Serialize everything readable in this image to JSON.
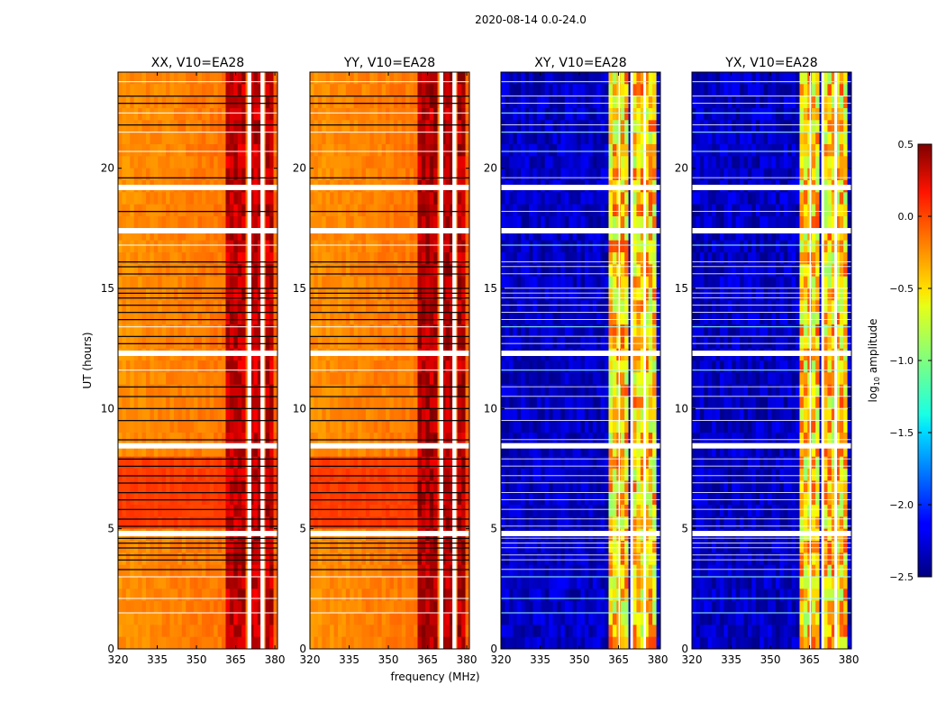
{
  "figure_title": "2020-08-14 0.0-24.0",
  "colors": {
    "frame": "#000000",
    "flag_white": "#ffffff",
    "flag_black": "#000000"
  },
  "chart_data": [
    {
      "type": "heatmap",
      "title": "XX, V10=EA28",
      "xlabel": "",
      "ylabel": "UT (hours)",
      "xlim": [
        320,
        381
      ],
      "ylim": [
        0,
        24
      ],
      "xticks": [
        320,
        335,
        350,
        365,
        380
      ],
      "yticks": [
        0,
        5,
        10,
        15,
        20
      ],
      "x_tick_labels": [
        "320",
        "335",
        "350",
        "365",
        "380"
      ],
      "y_tick_labels": [
        "0",
        "5",
        "10",
        "15",
        "20"
      ],
      "background_log10_amplitude": -0.3,
      "strong_rfi_band_mhz": [
        [
          360.5,
          369.5
        ],
        [
          371,
          374.5
        ],
        [
          376,
          380
        ]
      ],
      "band_log10_amplitude": 0.3,
      "elevated_period_hours": [
        4.8,
        7.8
      ],
      "elevated_log10_amplitude": -0.05
    },
    {
      "type": "heatmap",
      "title": "YY, V10=EA28",
      "xlabel": "frequency (MHz)",
      "ylabel": "",
      "xlim": [
        320,
        381
      ],
      "ylim": [
        0,
        24
      ],
      "xticks": [
        320,
        335,
        350,
        365,
        380
      ],
      "yticks": [
        0,
        5,
        10,
        15,
        20
      ],
      "x_tick_labels": [
        "320",
        "335",
        "350",
        "365",
        "380"
      ],
      "y_tick_labels": [
        "0",
        "5",
        "10",
        "15",
        "20"
      ],
      "background_log10_amplitude": -0.3,
      "strong_rfi_band_mhz": [
        [
          360.5,
          369.5
        ],
        [
          371,
          374.5
        ],
        [
          376,
          380
        ]
      ],
      "band_log10_amplitude": 0.35,
      "elevated_period_hours": [
        4.8,
        7.8
      ],
      "elevated_log10_amplitude": -0.05
    },
    {
      "type": "heatmap",
      "title": "XY, V10=EA28",
      "xlabel": "",
      "ylabel": "",
      "xlim": [
        320,
        381
      ],
      "ylim": [
        0,
        24
      ],
      "xticks": [
        320,
        335,
        350,
        365,
        380
      ],
      "yticks": [
        0,
        5,
        10,
        15,
        20
      ],
      "x_tick_labels": [
        "320",
        "335",
        "350",
        "365",
        "380"
      ],
      "y_tick_labels": [
        "0",
        "5",
        "10",
        "15",
        "20"
      ],
      "background_log10_amplitude": -2.3,
      "strong_rfi_band_mhz": [
        [
          360.5,
          365
        ],
        [
          365.5,
          369.5
        ],
        [
          370.5,
          374.5
        ],
        [
          375.5,
          379.5
        ]
      ],
      "band_log10_amplitude": -0.5
    },
    {
      "type": "heatmap",
      "title": "YX, V10=EA28",
      "xlabel": "",
      "ylabel": "",
      "xlim": [
        320,
        381
      ],
      "ylim": [
        0,
        24
      ],
      "xticks": [
        320,
        335,
        350,
        365,
        380
      ],
      "yticks": [
        0,
        5,
        10,
        15,
        20
      ],
      "x_tick_labels": [
        "320",
        "335",
        "350",
        "365",
        "380"
      ],
      "y_tick_labels": [
        "0",
        "5",
        "10",
        "15",
        "20"
      ],
      "background_log10_amplitude": -2.3,
      "strong_rfi_band_mhz": [
        [
          360.5,
          365
        ],
        [
          365.5,
          369.5
        ],
        [
          370.5,
          374.5
        ],
        [
          375.5,
          379.5
        ]
      ],
      "band_log10_amplitude": -0.5
    }
  ],
  "flagged_gaps_hours": [
    19.2,
    17.4,
    12.3,
    8.45,
    4.8
  ],
  "flagged_black_lines_hours": [
    23.0,
    22.7,
    21.8,
    19.6,
    18.2,
    16.1,
    15.9,
    15.6,
    15.0,
    14.8,
    14.6,
    14.3,
    14.0,
    13.7,
    13.0,
    12.7,
    10.9,
    10.5,
    10.0,
    9.5,
    8.7,
    7.9,
    7.6,
    7.2,
    6.9,
    6.5,
    6.2,
    5.8,
    5.4,
    5.1,
    4.6,
    4.4,
    4.2,
    3.9,
    3.7,
    3.3
  ],
  "flagged_white_lines_hours": [
    23.6,
    22.3,
    21.5,
    20.7,
    16.8,
    13.4,
    11.6,
    3.0,
    2.1,
    1.5
  ],
  "colorbar": {
    "label": "log10 amplitude",
    "label_base": "log",
    "label_sub": "10",
    "label_rest": " amplitude",
    "range": [
      -2.5,
      0.5
    ],
    "ticks": [
      0.5,
      0.0,
      -0.5,
      -1.0,
      -1.5,
      -2.0,
      -2.5
    ],
    "tick_labels": [
      "0.5",
      "0.0",
      "−0.5",
      "−1.0",
      "−1.5",
      "−2.0",
      "−2.5"
    ],
    "colormap": "jet"
  }
}
